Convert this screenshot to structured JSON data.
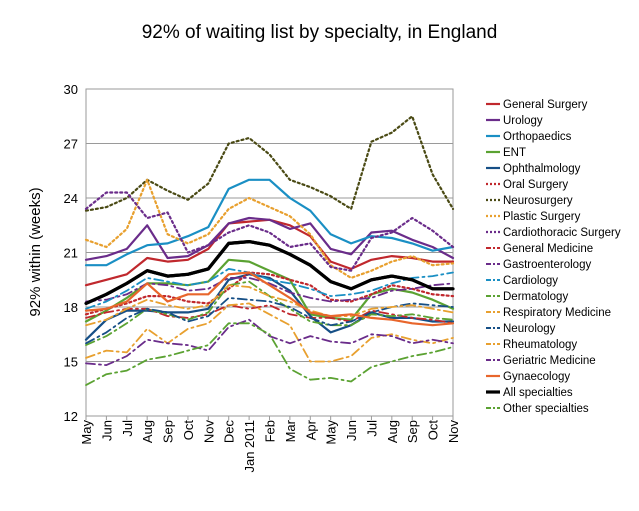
{
  "chart_data": {
    "type": "line",
    "title": "92% of waiting list by specialty, in England",
    "ylabel": "92% within (weeks)",
    "xlabel": "",
    "ylim": [
      12,
      30
    ],
    "yticks": [
      12,
      15,
      18,
      21,
      24,
      27,
      30
    ],
    "grid": "horizontal",
    "legend_position": "right",
    "categories": [
      "May",
      "Jun",
      "Jul",
      "Aug",
      "Sep",
      "Oct",
      "Nov",
      "Dec",
      "Jan 2011",
      "Feb",
      "Mar",
      "Apr",
      "May",
      "Jun",
      "Jul",
      "Aug",
      "Sep",
      "Oct",
      "Nov"
    ],
    "series": [
      {
        "name": "General Surgery",
        "color": "#c0282d",
        "dash": "solid",
        "width": 2.2,
        "values": [
          19.2,
          19.5,
          19.8,
          20.7,
          20.5,
          20.6,
          21.2,
          22.6,
          22.7,
          22.8,
          22.5,
          21.9,
          20.5,
          20.1,
          20.6,
          20.8,
          20.7,
          20.5,
          20.5
        ]
      },
      {
        "name": "Urology",
        "color": "#6a2c8a",
        "dash": "solid",
        "width": 2.2,
        "values": [
          20.6,
          20.8,
          21.2,
          22.5,
          20.7,
          20.8,
          21.4,
          22.6,
          22.9,
          22.8,
          22.3,
          22.6,
          21.2,
          20.9,
          22.1,
          22.2,
          21.7,
          21.3,
          20.7
        ]
      },
      {
        "name": "Orthopaedics",
        "color": "#1a8fc4",
        "dash": "solid",
        "width": 2.2,
        "values": [
          20.3,
          20.3,
          20.9,
          21.4,
          21.5,
          21.9,
          22.4,
          24.5,
          25.0,
          25.0,
          24.0,
          23.3,
          22.0,
          21.5,
          21.9,
          21.8,
          21.5,
          21.1,
          21.3
        ]
      },
      {
        "name": "ENT",
        "color": "#5ba232",
        "dash": "solid",
        "width": 2.2,
        "values": [
          17.2,
          17.8,
          18.5,
          19.3,
          19.3,
          19.2,
          19.4,
          20.6,
          20.5,
          20.0,
          19.5,
          17.6,
          17.4,
          17.3,
          18.7,
          19.0,
          18.8,
          18.4,
          17.9
        ]
      },
      {
        "name": "Ophthalmology",
        "color": "#164f86",
        "dash": "solid",
        "width": 2.2,
        "values": [
          16.2,
          17.3,
          17.8,
          17.8,
          17.7,
          17.7,
          17.9,
          19.5,
          19.8,
          19.6,
          18.9,
          17.5,
          16.6,
          17.0,
          17.7,
          17.4,
          17.4,
          17.2,
          17.2
        ]
      },
      {
        "name": "Oral Surgery",
        "color": "#c0282d",
        "dash": "dot",
        "width": 2.2,
        "values": [
          17.6,
          17.9,
          18.2,
          18.6,
          18.6,
          18.3,
          18.2,
          19.0,
          19.9,
          19.8,
          19.5,
          19.2,
          18.4,
          18.3,
          18.7,
          19.2,
          19.0,
          18.7,
          18.6
        ]
      },
      {
        "name": "Neurosurgery",
        "color": "#4a4a14",
        "dash": "dot",
        "width": 2.2,
        "values": [
          23.3,
          23.5,
          24.0,
          25.0,
          24.4,
          23.9,
          24.8,
          27.0,
          27.3,
          26.4,
          25.0,
          24.6,
          24.1,
          23.4,
          27.1,
          27.6,
          28.5,
          25.3,
          23.4
        ]
      },
      {
        "name": "Plastic Surgery",
        "color": "#e8a02f",
        "dash": "dot",
        "width": 2.2,
        "values": [
          21.7,
          21.3,
          22.3,
          25.0,
          22.0,
          21.5,
          22.0,
          23.4,
          24.0,
          23.5,
          23.0,
          22.0,
          20.3,
          19.6,
          20.0,
          20.5,
          20.8,
          20.3,
          20.4
        ]
      },
      {
        "name": "Cardiothoracic Surgery",
        "color": "#6a2c8a",
        "dash": "dot",
        "width": 2.2,
        "values": [
          23.4,
          24.3,
          24.3,
          22.9,
          23.2,
          21.0,
          21.4,
          22.1,
          22.5,
          22.1,
          21.3,
          21.5,
          20.2,
          20.0,
          21.8,
          22.1,
          22.9,
          22.2,
          21.3
        ]
      },
      {
        "name": "General Medicine",
        "color": "#c0282d",
        "dash": "dashdot",
        "width": 1.8,
        "values": [
          17.4,
          17.7,
          17.9,
          17.9,
          17.5,
          17.4,
          17.6,
          18.1,
          17.9,
          18.1,
          17.6,
          17.4,
          17.4,
          17.2,
          17.8,
          17.6,
          17.4,
          17.3,
          17.1
        ]
      },
      {
        "name": "Gastroenterology",
        "color": "#6a2c8a",
        "dash": "dashdot",
        "width": 1.8,
        "values": [
          18.3,
          18.4,
          18.7,
          19.3,
          19.2,
          18.9,
          19.0,
          19.6,
          19.6,
          19.3,
          18.8,
          18.5,
          18.3,
          18.4,
          18.5,
          18.9,
          19.0,
          19.2,
          19.3
        ]
      },
      {
        "name": "Cardiology",
        "color": "#1a8fc4",
        "dash": "dashdot",
        "width": 1.8,
        "values": [
          17.9,
          18.3,
          18.9,
          19.6,
          19.4,
          19.2,
          19.4,
          20.1,
          19.9,
          19.5,
          19.3,
          19.0,
          18.6,
          18.7,
          18.9,
          19.3,
          19.6,
          19.7,
          19.9
        ]
      },
      {
        "name": "Dermatology",
        "color": "#5ba232",
        "dash": "dashdot",
        "width": 1.8,
        "values": [
          15.9,
          16.4,
          17.1,
          17.9,
          17.6,
          17.3,
          17.7,
          19.2,
          19.4,
          18.6,
          17.9,
          17.2,
          17.0,
          17.0,
          17.6,
          17.5,
          17.6,
          17.4,
          17.3
        ]
      },
      {
        "name": "Respiratory Medicine",
        "color": "#e8a02f",
        "dash": "dashdot",
        "width": 1.8,
        "values": [
          15.2,
          15.6,
          15.5,
          16.8,
          16.0,
          16.8,
          17.1,
          18.1,
          18.2,
          17.6,
          17.0,
          15.0,
          15.0,
          15.3,
          16.3,
          16.5,
          16.2,
          16.0,
          16.3
        ]
      },
      {
        "name": "Neurology",
        "color": "#164f86",
        "dash": "dashdot",
        "width": 1.8,
        "values": [
          16.0,
          16.6,
          17.4,
          17.9,
          17.7,
          17.2,
          17.5,
          18.5,
          18.4,
          18.3,
          18.0,
          17.4,
          17.0,
          17.2,
          17.7,
          18.0,
          18.2,
          18.1,
          18.0
        ]
      },
      {
        "name": "Rheumatology",
        "color": "#e8a02f",
        "dash": "dashdot",
        "width": 1.8,
        "values": [
          17.0,
          17.3,
          17.9,
          18.4,
          18.1,
          17.9,
          18.1,
          19.2,
          19.1,
          18.6,
          18.3,
          17.8,
          17.5,
          17.5,
          17.9,
          18.0,
          18.1,
          17.9,
          17.7
        ]
      },
      {
        "name": "Geriatric Medicine",
        "color": "#6a2c8a",
        "dash": "dashdot",
        "width": 1.8,
        "values": [
          14.9,
          14.8,
          15.3,
          16.2,
          16.0,
          15.9,
          15.6,
          16.9,
          17.3,
          16.4,
          16.0,
          16.4,
          16.1,
          16.0,
          16.5,
          16.4,
          16.0,
          16.2,
          16.0
        ]
      },
      {
        "name": "Gynaecology",
        "color": "#e8662c",
        "dash": "solid",
        "width": 2.2,
        "values": [
          17.8,
          17.9,
          18.3,
          19.3,
          18.3,
          18.7,
          18.7,
          19.8,
          19.9,
          19.2,
          18.5,
          17.7,
          17.5,
          17.6,
          17.4,
          17.3,
          17.1,
          17.0,
          17.1
        ]
      },
      {
        "name": "All specialties",
        "color": "#000000",
        "dash": "solid",
        "width": 3.2,
        "values": [
          18.2,
          18.7,
          19.3,
          20.0,
          19.7,
          19.8,
          20.1,
          21.5,
          21.6,
          21.4,
          20.9,
          20.3,
          19.4,
          19.0,
          19.5,
          19.7,
          19.5,
          19.0,
          19.0
        ]
      },
      {
        "name": "Other specialties",
        "color": "#5ba232",
        "dash": "dashdot",
        "width": 1.8,
        "values": [
          13.7,
          14.3,
          14.5,
          15.1,
          15.3,
          15.6,
          15.9,
          17.1,
          17.1,
          16.5,
          14.6,
          14.0,
          14.1,
          13.9,
          14.7,
          15.0,
          15.3,
          15.5,
          15.8
        ]
      }
    ]
  }
}
